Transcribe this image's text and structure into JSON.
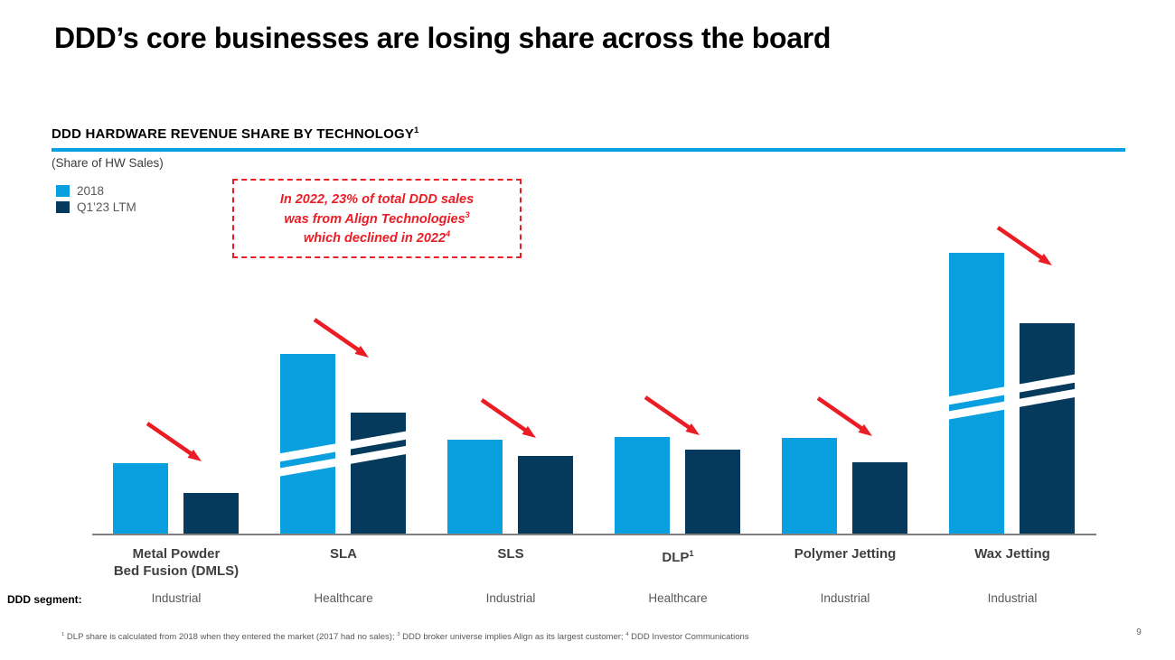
{
  "slide": {
    "title": "DDD’s core businesses are losing share across the board",
    "page_number": "9"
  },
  "chart_header": {
    "title": "DDD HARDWARE REVENUE SHARE BY TECHNOLOGY",
    "title_sup": "1",
    "subtitle": "(Share of HW Sales)"
  },
  "legend": {
    "items": [
      {
        "label": "2018",
        "color": "#0aa0e0"
      },
      {
        "label": "Q1’23 LTM",
        "color": "#063a5c"
      }
    ]
  },
  "callout": {
    "line1": "In 2022, 23% of total DDD sales",
    "line2": "was from Align Technologies",
    "line2_sup": "3",
    "line3": "which declined in 2022",
    "line3_sup": "4",
    "color": "#ec1c24"
  },
  "segment_row": {
    "caption": "DDD segment:"
  },
  "chart_data": {
    "type": "bar",
    "title": "DDD HARDWARE REVENUE SHARE BY TECHNOLOGY",
    "ylabel": "Share of HW Sales",
    "value_note": "No numeric axis shown; values are relative bar heights (100 = tallest bar, Wax Jetting 2018). SLA and Wax Jetting bars are truncated with white axis-break slashes. Red arrows mark declining share in every category.",
    "series_names": [
      "2018",
      "Q1'23 LTM"
    ],
    "colors": {
      "series_2018": "#0aa0e0",
      "series_q123_ltm": "#063a5c",
      "arrow": "#ec1c24",
      "axis_line": "#7f7f7f"
    },
    "legend_position": "top-left",
    "grid": false,
    "groups": [
      {
        "category": "Metal Powder Bed Fusion (DMLS)",
        "label_lines": [
          "Metal Powder",
          "Bed Fusion (DMLS)"
        ],
        "segment": "Industrial",
        "share_2018": 25,
        "share_q123_ltm": 14.5,
        "axis_break": false,
        "trend": "declining"
      },
      {
        "category": "SLA",
        "label_lines": [
          "SLA"
        ],
        "segment": "Healthcare",
        "share_2018": 64,
        "share_q123_ltm": 43,
        "axis_break": true,
        "trend": "declining"
      },
      {
        "category": "SLS",
        "label_lines": [
          "SLS"
        ],
        "segment": "Industrial",
        "share_2018": 33.5,
        "share_q123_ltm": 27.5,
        "axis_break": false,
        "trend": "declining"
      },
      {
        "category": "DLP",
        "label_lines": [
          "DLP"
        ],
        "label_sup": "1",
        "segment": "Healthcare",
        "share_2018": 34.5,
        "share_q123_ltm": 30,
        "axis_break": false,
        "trend": "declining"
      },
      {
        "category": "Polymer Jetting",
        "label_lines": [
          "Polymer Jetting"
        ],
        "segment": "Industrial",
        "share_2018": 34,
        "share_q123_ltm": 25.5,
        "axis_break": false,
        "trend": "declining"
      },
      {
        "category": "Wax Jetting",
        "label_lines": [
          "Wax Jetting"
        ],
        "segment": "Industrial",
        "share_2018": 100,
        "share_q123_ltm": 75,
        "axis_break": true,
        "trend": "declining"
      }
    ]
  },
  "footnote": {
    "sup1": "1",
    "part1": " DLP share is calculated from 2018 when they entered the market (2017 had no sales); ",
    "sup3": "3",
    "part3": " DDD broker universe implies Align as its largest customer; ",
    "sup4": "4",
    "part4": " DDD Investor Communications"
  }
}
